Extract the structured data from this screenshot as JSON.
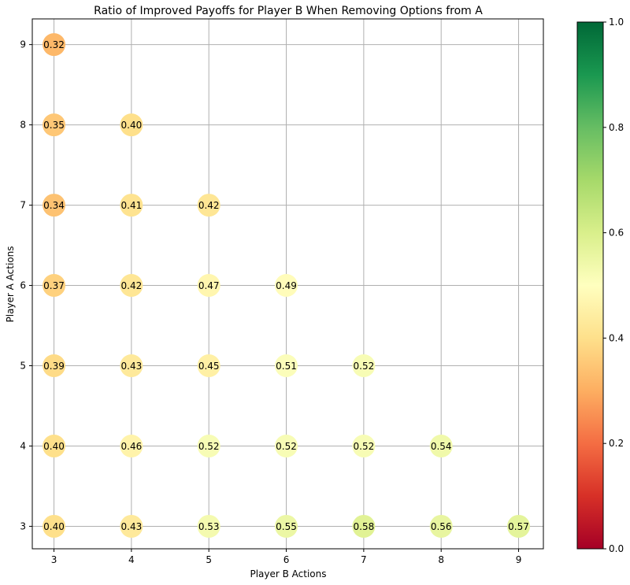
{
  "chart_data": {
    "type": "scatter",
    "title": "Ratio of Improved Payoffs for Player B When Removing Options from A",
    "xlabel": "Player B Actions",
    "ylabel": "Player A Actions",
    "xlim": [
      2.72,
      9.32
    ],
    "ylim": [
      2.72,
      9.32
    ],
    "x_ticks": [
      "3",
      "4",
      "5",
      "6",
      "7",
      "8",
      "9"
    ],
    "y_ticks": [
      "3",
      "4",
      "5",
      "6",
      "7",
      "8",
      "9"
    ],
    "grid": true,
    "colormap": "RdYlGn",
    "color_range": [
      0.0,
      1.0
    ],
    "colorbar_ticks": [
      "0.0",
      "0.2",
      "0.4",
      "0.6",
      "0.8",
      "1.0"
    ],
    "points": [
      {
        "x": 3,
        "y": 9,
        "value": 0.32,
        "label": "0.32"
      },
      {
        "x": 3,
        "y": 8,
        "value": 0.35,
        "label": "0.35"
      },
      {
        "x": 4,
        "y": 8,
        "value": 0.4,
        "label": "0.40"
      },
      {
        "x": 3,
        "y": 7,
        "value": 0.34,
        "label": "0.34"
      },
      {
        "x": 4,
        "y": 7,
        "value": 0.41,
        "label": "0.41"
      },
      {
        "x": 5,
        "y": 7,
        "value": 0.42,
        "label": "0.42"
      },
      {
        "x": 3,
        "y": 6,
        "value": 0.37,
        "label": "0.37"
      },
      {
        "x": 4,
        "y": 6,
        "value": 0.42,
        "label": "0.42"
      },
      {
        "x": 5,
        "y": 6,
        "value": 0.47,
        "label": "0.47"
      },
      {
        "x": 6,
        "y": 6,
        "value": 0.49,
        "label": "0.49"
      },
      {
        "x": 3,
        "y": 5,
        "value": 0.39,
        "label": "0.39"
      },
      {
        "x": 4,
        "y": 5,
        "value": 0.43,
        "label": "0.43"
      },
      {
        "x": 5,
        "y": 5,
        "value": 0.45,
        "label": "0.45"
      },
      {
        "x": 6,
        "y": 5,
        "value": 0.51,
        "label": "0.51"
      },
      {
        "x": 7,
        "y": 5,
        "value": 0.52,
        "label": "0.52"
      },
      {
        "x": 3,
        "y": 4,
        "value": 0.4,
        "label": "0.40"
      },
      {
        "x": 4,
        "y": 4,
        "value": 0.46,
        "label": "0.46"
      },
      {
        "x": 5,
        "y": 4,
        "value": 0.52,
        "label": "0.52"
      },
      {
        "x": 6,
        "y": 4,
        "value": 0.52,
        "label": "0.52"
      },
      {
        "x": 7,
        "y": 4,
        "value": 0.52,
        "label": "0.52"
      },
      {
        "x": 8,
        "y": 4,
        "value": 0.54,
        "label": "0.54"
      },
      {
        "x": 3,
        "y": 3,
        "value": 0.4,
        "label": "0.40"
      },
      {
        "x": 4,
        "y": 3,
        "value": 0.43,
        "label": "0.43"
      },
      {
        "x": 5,
        "y": 3,
        "value": 0.53,
        "label": "0.53"
      },
      {
        "x": 6,
        "y": 3,
        "value": 0.55,
        "label": "0.55"
      },
      {
        "x": 7,
        "y": 3,
        "value": 0.58,
        "label": "0.58"
      },
      {
        "x": 8,
        "y": 3,
        "value": 0.56,
        "label": "0.56"
      },
      {
        "x": 9,
        "y": 3,
        "value": 0.57,
        "label": "0.57"
      }
    ]
  }
}
